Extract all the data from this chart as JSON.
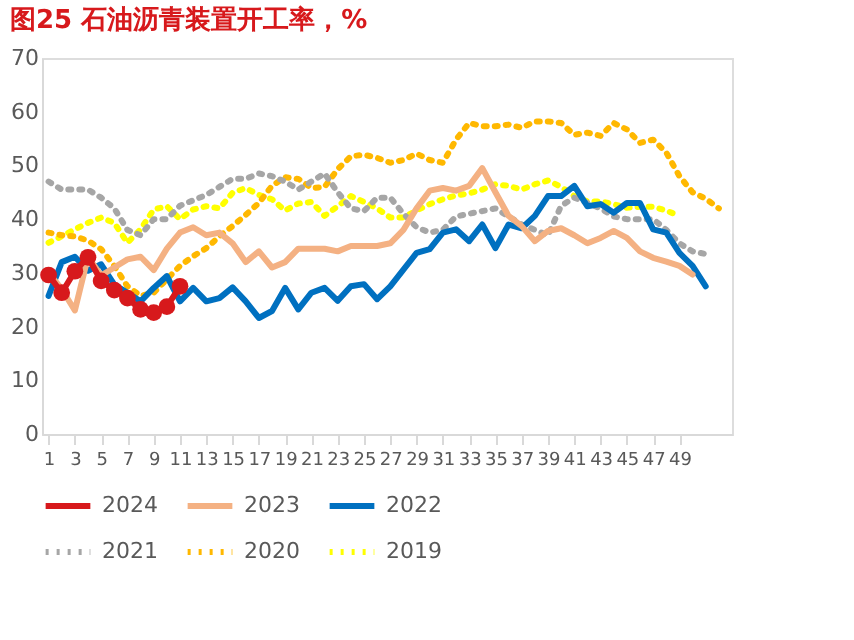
{
  "chart_data": {
    "type": "line",
    "title": "图25 石油沥青装置开工率，%",
    "x": [
      1,
      2,
      3,
      4,
      5,
      6,
      7,
      8,
      9,
      10,
      11,
      12,
      13,
      14,
      15,
      16,
      17,
      18,
      19,
      20,
      21,
      22,
      23,
      24,
      25,
      26,
      27,
      28,
      29,
      30,
      31,
      32,
      33,
      34,
      35,
      36,
      37,
      38,
      39,
      40,
      41,
      42,
      43,
      44,
      45,
      46,
      47,
      48,
      49,
      50,
      51,
      52
    ],
    "xlim": [
      0.5,
      53
    ],
    "xticks": [
      1,
      3,
      5,
      7,
      9,
      11,
      13,
      15,
      17,
      19,
      21,
      23,
      25,
      27,
      29,
      31,
      33,
      35,
      37,
      39,
      41,
      43,
      45,
      47,
      49
    ],
    "ylim": [
      0,
      70
    ],
    "yticks": [
      0,
      10,
      20,
      30,
      40,
      50,
      60,
      70
    ],
    "grid": false,
    "legend": "bottom",
    "series": [
      {
        "name": "2024",
        "color": "#d7191c",
        "line_style": "solid",
        "marker": "circle",
        "values": [
          29.6,
          26.3,
          30.3,
          32.9,
          28.5,
          26.8,
          25.3,
          23.2,
          22.6,
          23.7,
          27.5,
          null,
          null,
          null,
          null,
          null,
          null,
          null,
          null,
          null,
          null,
          null,
          null,
          null,
          null,
          null,
          null,
          null,
          null,
          null,
          null,
          null,
          null,
          null,
          null,
          null,
          null,
          null,
          null,
          null,
          null,
          null,
          null,
          null,
          null,
          null,
          null,
          null,
          null,
          null,
          null,
          null
        ]
      },
      {
        "name": "2023",
        "color": "#f4b183",
        "line_style": "solid",
        "marker": "none",
        "values": [
          30,
          27,
          23,
          33,
          29.5,
          31,
          32.5,
          33,
          30.5,
          34.5,
          37.5,
          38.5,
          37,
          37.5,
          35.5,
          32,
          34,
          31,
          32,
          34.5,
          34.5,
          34.5,
          34,
          35,
          35,
          35,
          35.5,
          38,
          42,
          45.3,
          45.8,
          45.3,
          46.2,
          49.5,
          45,
          40.6,
          38.7,
          35.9,
          37.8,
          38.3,
          37,
          35.5,
          36.5,
          37.8,
          36.5,
          34,
          32.8,
          32.1,
          31.3,
          29.7,
          null,
          null
        ]
      },
      {
        "name": "2022",
        "color": "#0070c0",
        "line_style": "solid",
        "marker": "none",
        "values": [
          25.7,
          32,
          33,
          30.4,
          31.6,
          27.8,
          26.3,
          24.7,
          27.2,
          29.4,
          24.7,
          27.2,
          24.7,
          25.3,
          27.3,
          24.7,
          21.6,
          22.9,
          27.2,
          23.2,
          26.3,
          27.2,
          24.8,
          27.5,
          27.9,
          25.1,
          27.5,
          30.6,
          33.7,
          34.4,
          37.5,
          38.1,
          35.9,
          39,
          34.6,
          39,
          38.3,
          40.6,
          44.3,
          44.3,
          46.2,
          42.4,
          42.8,
          41.2,
          43,
          43,
          38.1,
          37.5,
          33.7,
          31.3,
          27.5,
          null
        ]
      },
      {
        "name": "2021",
        "color": "#a6a6a6",
        "line_style": "dotted",
        "marker": "none",
        "values": [
          47,
          45.5,
          45.5,
          45.5,
          44,
          42,
          38,
          37,
          40,
          40,
          42.5,
          43.5,
          44.5,
          46,
          47.5,
          47.5,
          48.5,
          48,
          47,
          45.5,
          47,
          48.5,
          45,
          42,
          41.5,
          44,
          44,
          41,
          38.5,
          37.5,
          38,
          40.5,
          41,
          41.5,
          42,
          40.5,
          39,
          38,
          37,
          42.5,
          44,
          43,
          42,
          40.5,
          40,
          40,
          40,
          38,
          35.5,
          34,
          33.5,
          null
        ]
      },
      {
        "name": "2020",
        "color": "#ffb800",
        "line_style": "dotted",
        "marker": "none",
        "values": [
          37.5,
          37,
          36.8,
          36,
          34.4,
          31.3,
          27.5,
          25.7,
          26.3,
          28.8,
          31.3,
          33.1,
          34.6,
          36.8,
          38.7,
          40.8,
          43,
          46.2,
          47.8,
          47.5,
          45.8,
          46,
          49.3,
          51.7,
          52,
          51.4,
          50.5,
          51,
          52.2,
          51,
          50.5,
          54.8,
          57.9,
          57.3,
          57.3,
          57.6,
          57,
          58.2,
          58.2,
          57.9,
          55.7,
          56.1,
          55.5,
          57.9,
          56.7,
          54.2,
          54.8,
          52.4,
          48,
          45,
          43.8,
          42
        ]
      },
      {
        "name": "2019",
        "color": "#ffff00",
        "line_style": "dotted",
        "marker": "none",
        "values": [
          35.6,
          36.8,
          38.1,
          39.3,
          40.3,
          39.3,
          35.6,
          38.1,
          41.8,
          42.4,
          40,
          41.8,
          42.4,
          42,
          44.9,
          45.8,
          44.5,
          43.7,
          41.6,
          42.9,
          43.2,
          40.6,
          42.4,
          44.3,
          43.2,
          42,
          40.3,
          40.3,
          41.6,
          42.8,
          43.7,
          44.4,
          44.8,
          45.5,
          46.5,
          46.2,
          45.5,
          46.5,
          47.2,
          46,
          44.3,
          43.3,
          43.3,
          42.8,
          42.1,
          42.3,
          42.3,
          41.6,
          40.6,
          null,
          null,
          null
        ]
      }
    ]
  }
}
